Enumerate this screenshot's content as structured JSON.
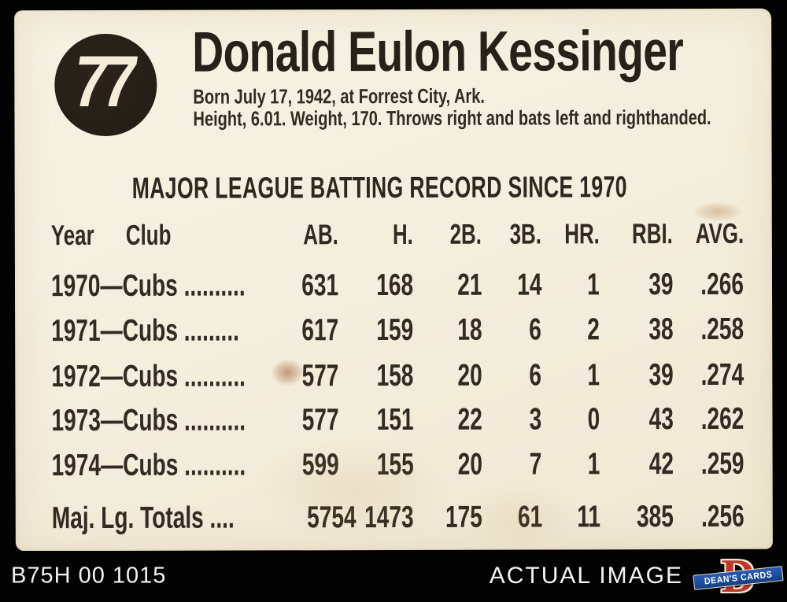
{
  "colors": {
    "card_bg": "#f4eedd",
    "ink": "#332a22",
    "badge": "#251e17",
    "bar_bg": "#020202",
    "bar_text": "#f4f4f4",
    "logo_red": "#bf3726",
    "logo_blue": "#1e4f9e"
  },
  "card": {
    "number": "77",
    "name": "Donald Eulon Kessinger",
    "bio_line1": "Born July 17, 1942, at Forrest City, Ark.",
    "bio_line2": "Height, 6.01. Weight, 170. Throws right and bats left and righthanded.",
    "table_title": "MAJOR LEAGUE BATTING RECORD SINCE 1970",
    "stats": {
      "columns": {
        "year": "Year",
        "club": "Club",
        "ab": "AB.",
        "h": "H.",
        "b2": "2B.",
        "b3": "3B.",
        "hr": "HR.",
        "rbi": "RBI.",
        "avg": "AVG."
      },
      "rows": [
        {
          "label": "1970—Cubs ..........",
          "ab": "631",
          "h": "168",
          "b2": "21",
          "b3": "14",
          "hr": "1",
          "rbi": "39",
          "avg": ".266"
        },
        {
          "label": "1971—Cubs .........",
          "ab": "617",
          "h": "159",
          "b2": "18",
          "b3": "6",
          "hr": "2",
          "rbi": "38",
          "avg": ".258"
        },
        {
          "label": "1972—Cubs ..........",
          "ab": "577",
          "h": "158",
          "b2": "20",
          "b3": "6",
          "hr": "1",
          "rbi": "39",
          "avg": ".274"
        },
        {
          "label": "1973—Cubs ..........",
          "ab": "577",
          "h": "151",
          "b2": "22",
          "b3": "3",
          "hr": "0",
          "rbi": "43",
          "avg": ".262"
        },
        {
          "label": "1974—Cubs ..........",
          "ab": "599",
          "h": "155",
          "b2": "20",
          "b3": "7",
          "hr": "1",
          "rbi": "42",
          "avg": ".259"
        }
      ],
      "totals": {
        "label": "Maj. Lg. Totals ....",
        "ab": "5754",
        "h": "1473",
        "b2": "175",
        "b3": "61",
        "hr": "11",
        "rbi": "385",
        "avg": ".256"
      }
    }
  },
  "watermark": {
    "code": "B75H 00 1015",
    "label": "ACTUAL IMAGE",
    "logo_letter": "D",
    "logo_text": "DEAN'S CARDS"
  }
}
